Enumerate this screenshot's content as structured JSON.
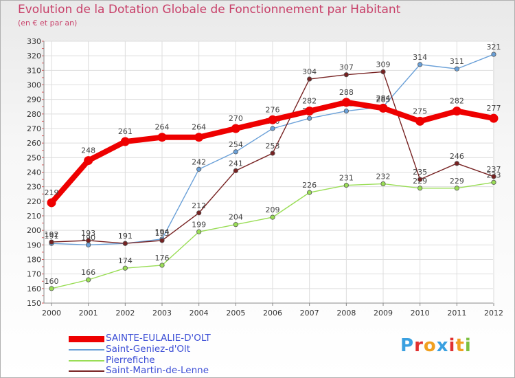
{
  "chart_data": {
    "type": "line",
    "title": "Evolution de la Dotation Globale de Fonctionnement par Habitant",
    "subtitle": "(en € et par an)",
    "x": [
      "2000",
      "2001",
      "2002",
      "2003",
      "2004",
      "2005",
      "2006",
      "2007",
      "2008",
      "2009",
      "2010",
      "2011",
      "2012"
    ],
    "ylim": [
      150,
      330
    ],
    "yticks": [
      150,
      160,
      170,
      180,
      190,
      200,
      210,
      220,
      230,
      240,
      250,
      260,
      270,
      280,
      290,
      300,
      310,
      320,
      330
    ],
    "grid": true,
    "legend_position": "bottom-left",
    "series": [
      {
        "name": "Pierrefiche",
        "color": "#99dd55",
        "values": [
          160,
          166,
          174,
          176,
          199,
          204,
          209,
          226,
          231,
          232,
          229,
          229,
          233
        ],
        "labels": [
          "160",
          "166",
          "174",
          "176",
          "199",
          "204",
          "209",
          "226",
          "231",
          "232",
          "229",
          "229",
          "233"
        ]
      },
      {
        "name": "Saint-Geniez-d'Olt",
        "color": "#6aa0d8",
        "values": [
          191,
          190,
          191,
          194,
          242,
          254,
          270,
          277,
          282,
          285,
          314,
          311,
          321
        ],
        "labels": [
          "191",
          "190",
          "191",
          "194",
          "242",
          "254",
          "270",
          "277",
          "282",
          "285",
          "314",
          "311",
          "321"
        ]
      },
      {
        "name": "Saint-Martin-de-Lenne",
        "color": "#772222",
        "values": [
          192,
          193,
          191,
          193,
          212,
          241,
          253,
          304,
          307,
          309,
          235,
          246,
          237
        ],
        "labels": [
          "192",
          "193",
          "191",
          "193",
          "212",
          "241",
          "253",
          "304",
          "307",
          "309",
          "235",
          "246",
          "237"
        ]
      },
      {
        "name": "SAINTE-EULALIE-D'OLT",
        "color": "#ee0000",
        "values": [
          219,
          248,
          261,
          264,
          264,
          270,
          276,
          282,
          288,
          284,
          275,
          282,
          277
        ],
        "labels": [
          "219",
          "248",
          "261",
          "264",
          "264",
          "270",
          "276",
          "282",
          "288",
          "284",
          "275",
          "282",
          "277"
        ]
      }
    ]
  },
  "legend": [
    {
      "name": "SAINTE-EULALIE-D'OLT",
      "color": "#ee0000",
      "weight": "thick"
    },
    {
      "name": "Saint-Geniez-d'Olt",
      "color": "#6aa0d8",
      "weight": "thin"
    },
    {
      "name": "Pierrefiche",
      "color": "#99dd55",
      "weight": "thin"
    },
    {
      "name": "Saint-Martin-de-Lenne",
      "color": "#772222",
      "weight": "thin"
    }
  ],
  "logo": {
    "letters": [
      "P",
      "r",
      "o",
      "x",
      "i",
      "t",
      "i"
    ],
    "colors": [
      "#3aa0e0",
      "#e03030",
      "#f0a020",
      "#3aa0e0",
      "#e03030",
      "#f0a020",
      "#7cc040"
    ]
  }
}
